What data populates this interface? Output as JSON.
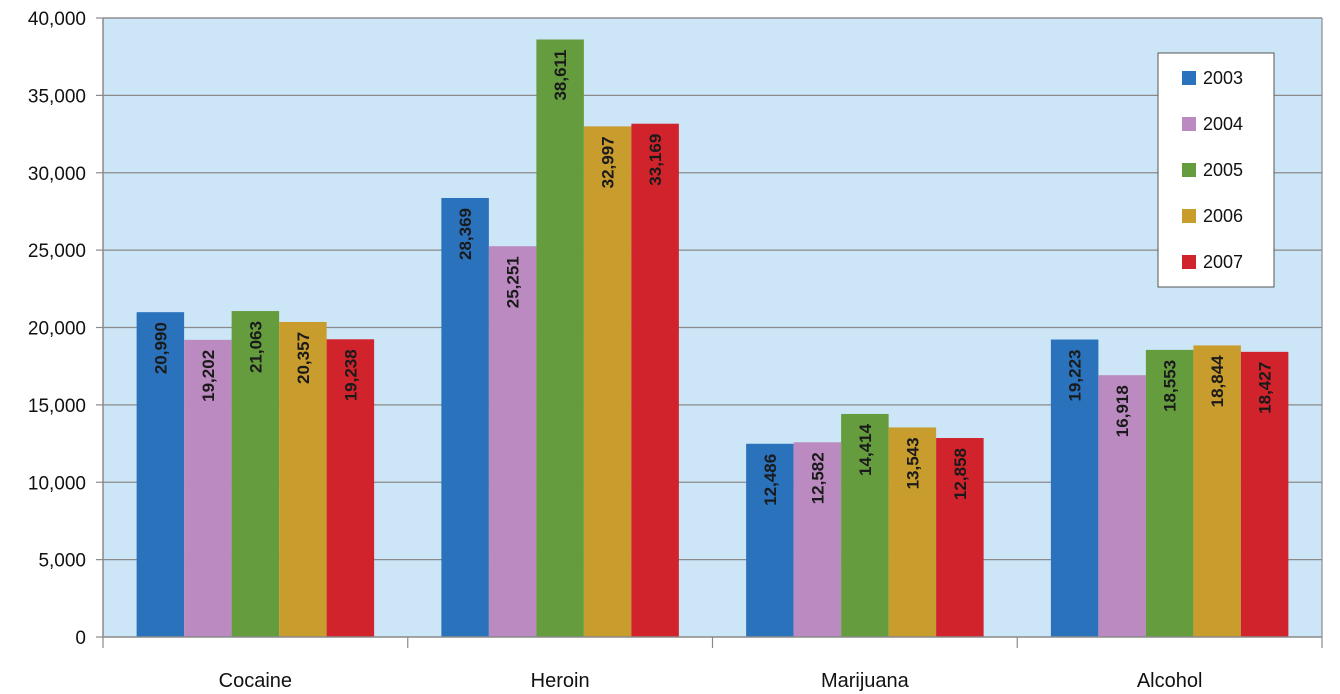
{
  "chart_data": {
    "type": "bar",
    "categories": [
      "Cocaine",
      "Heroin",
      "Marijuana",
      "Alcohol"
    ],
    "series": [
      {
        "name": "2003",
        "values": [
          20990,
          28369,
          12486,
          19223
        ]
      },
      {
        "name": "2004",
        "values": [
          19202,
          25251,
          12582,
          16918
        ]
      },
      {
        "name": "2005",
        "values": [
          21063,
          38611,
          14414,
          18553
        ]
      },
      {
        "name": "2006",
        "values": [
          20357,
          32997,
          13543,
          18844
        ]
      },
      {
        "name": "2007",
        "values": [
          19238,
          33169,
          12858,
          18427
        ]
      }
    ],
    "data_labels": [
      [
        "20,990",
        "28,369",
        "12,486",
        "19,223"
      ],
      [
        "19,202",
        "25,251",
        "12,582",
        "16,918"
      ],
      [
        "21,063",
        "38,611",
        "14,414",
        "18,553"
      ],
      [
        "20,357",
        "32,997",
        "13,543",
        "18,844"
      ],
      [
        "19,238",
        "33,169",
        "12,858",
        "18,427"
      ]
    ],
    "yticks": [
      0,
      5000,
      10000,
      15000,
      20000,
      25000,
      30000,
      35000,
      40000
    ],
    "ytick_labels": [
      "0",
      "5,000",
      "10,000",
      "15,000",
      "20,000",
      "25,000",
      "30,000",
      "35,000",
      "40,000"
    ],
    "ylim": [
      0,
      40000
    ],
    "title": "",
    "xlabel": "",
    "ylabel": "",
    "grid": true,
    "legend_position": "top-right",
    "colors": [
      "#2a72bb",
      "#bb8ac0",
      "#659c3e",
      "#c99c2e",
      "#d0232b"
    ],
    "plot_background": "#cce6f7"
  }
}
